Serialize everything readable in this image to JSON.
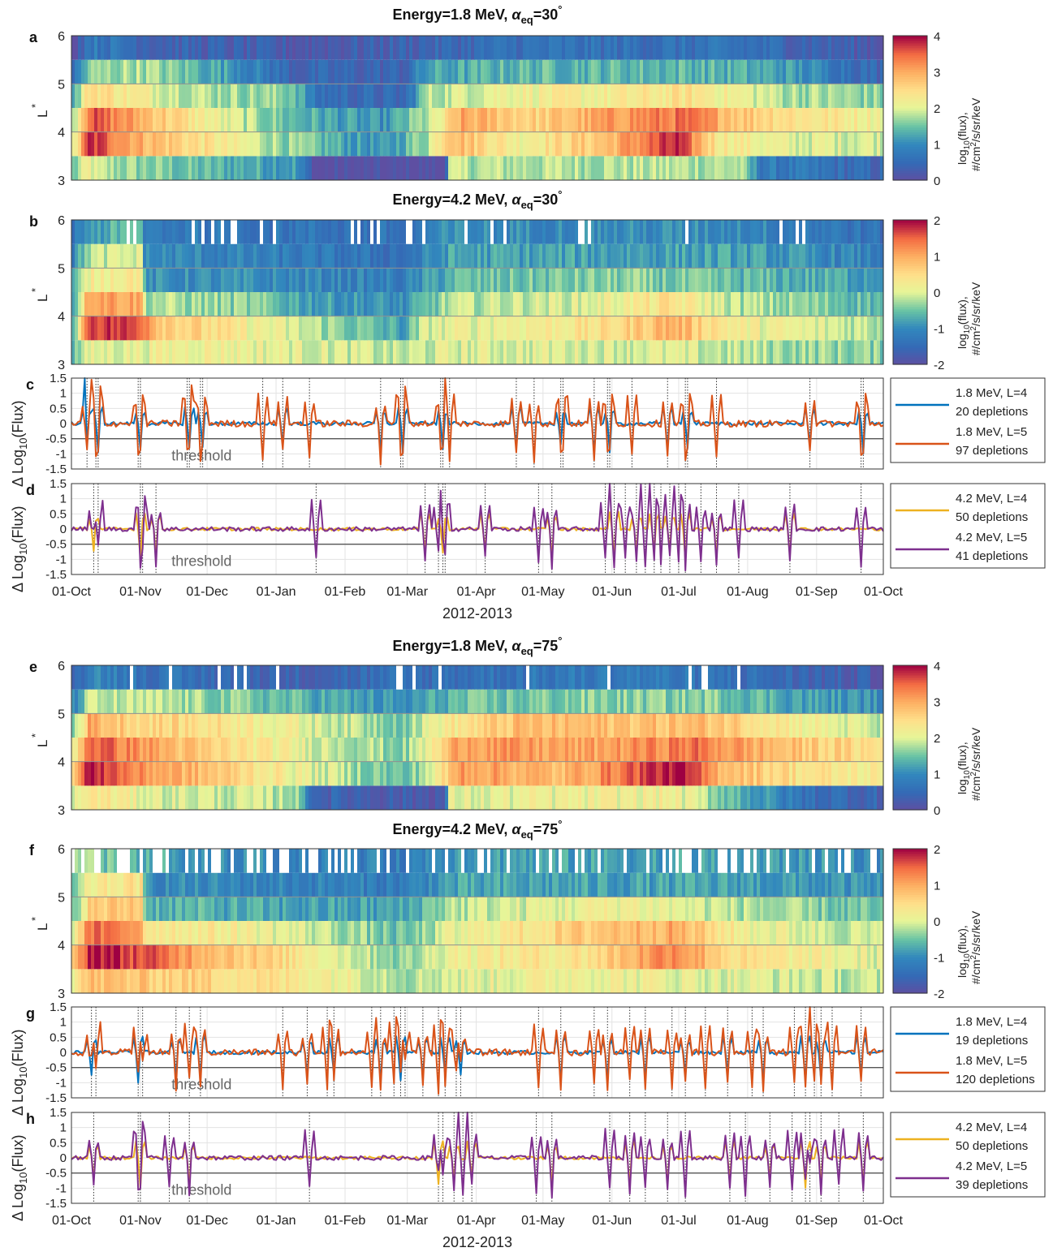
{
  "figure": {
    "xlabel": "2012-2013",
    "month_ticks": [
      "01-Oct",
      "01-Nov",
      "01-Dec",
      "01-Jan",
      "01-Feb",
      "01-Mar",
      "01-Apr",
      "01-May",
      "01-Jun",
      "01-Jul",
      "01-Aug",
      "01-Sep",
      "01-Oct"
    ],
    "month_day_offsets": [
      0,
      31,
      61,
      92,
      123,
      151,
      182,
      212,
      243,
      273,
      304,
      335,
      365
    ],
    "heatmap_yticks": [
      "3",
      "4",
      "5",
      "6"
    ],
    "heatmap_ylabel": "L",
    "heatmap_ylabel_sup": "*",
    "line_ylabel": "Δ Log10(Flux)",
    "line_yticks": [
      "1.5",
      "1",
      "0.5",
      "0",
      "-0.5",
      "-1",
      "-1.5"
    ],
    "threshold_label": "threshold",
    "threshold_value": -0.5,
    "colorbar_label": "log10(flux), #/cm2/s/sr/keV"
  },
  "chart_data": [
    {
      "panel": "a",
      "type": "heatmap",
      "title": "Energy=1.8 MeV, αeq=30°",
      "title_parts": {
        "pre": "Energy=1.8 MeV, ",
        "sym": "α",
        "sub": "eq",
        "post": "=30",
        "deg": "°"
      },
      "ylim": [
        3,
        6
      ],
      "clim": [
        0,
        4
      ],
      "colorbar_ticks": [
        "0",
        "1",
        "2",
        "3",
        "4"
      ],
      "x_range_days": [
        0,
        365
      ],
      "L_bins": [
        3.25,
        3.75,
        4.25,
        4.75,
        5.25,
        5.75
      ]
    },
    {
      "panel": "b",
      "type": "heatmap",
      "title": "Energy=4.2 MeV, αeq=30°",
      "title_parts": {
        "pre": "Energy=4.2 MeV, ",
        "sym": "α",
        "sub": "eq",
        "post": "=30",
        "deg": "°"
      },
      "ylim": [
        3,
        6
      ],
      "clim": [
        -2,
        2
      ],
      "colorbar_ticks": [
        "-2",
        "-1",
        "0",
        "1",
        "2"
      ],
      "x_range_days": [
        0,
        365
      ],
      "L_bins": [
        3.25,
        3.75,
        4.25,
        4.75,
        5.25,
        5.75
      ]
    },
    {
      "panel": "c",
      "type": "line",
      "ylim": [
        -1.5,
        1.5
      ],
      "threshold": -0.5,
      "series": [
        {
          "name": "1.8 MeV, L=4",
          "count_label": "20 depletions",
          "color": "#0072BD"
        },
        {
          "name": "1.8 MeV, L=5",
          "count_label": "97 depletions",
          "color": "#D95319"
        }
      ]
    },
    {
      "panel": "d",
      "type": "line",
      "ylim": [
        -1.5,
        1.5
      ],
      "threshold": -0.5,
      "series": [
        {
          "name": "4.2 MeV, L=4",
          "count_label": "50 depletions",
          "color": "#EDB120"
        },
        {
          "name": "4.2 MeV, L=5",
          "count_label": "41 depletions",
          "color": "#7E2F8E"
        }
      ]
    },
    {
      "panel": "e",
      "type": "heatmap",
      "title": "Energy=1.8 MeV, αeq=75°",
      "title_parts": {
        "pre": "Energy=1.8 MeV, ",
        "sym": "α",
        "sub": "eq",
        "post": "=75",
        "deg": "°"
      },
      "ylim": [
        3,
        6
      ],
      "clim": [
        0,
        4
      ],
      "colorbar_ticks": [
        "0",
        "1",
        "2",
        "3",
        "4"
      ],
      "x_range_days": [
        0,
        365
      ],
      "L_bins": [
        3.25,
        3.75,
        4.25,
        4.75,
        5.25,
        5.75
      ]
    },
    {
      "panel": "f",
      "type": "heatmap",
      "title": "Energy=4.2 MeV, αeq=75°",
      "title_parts": {
        "pre": "Energy=4.2 MeV, ",
        "sym": "α",
        "sub": "eq",
        "post": "=75",
        "deg": "°"
      },
      "ylim": [
        3,
        6
      ],
      "clim": [
        -2,
        2
      ],
      "colorbar_ticks": [
        "-2",
        "-1",
        "0",
        "1",
        "2"
      ],
      "x_range_days": [
        0,
        365
      ],
      "L_bins": [
        3.25,
        3.75,
        4.25,
        4.75,
        5.25,
        5.75
      ]
    },
    {
      "panel": "g",
      "type": "line",
      "ylim": [
        -1.5,
        1.5
      ],
      "threshold": -0.5,
      "series": [
        {
          "name": "1.8 MeV, L=4",
          "count_label": "19 depletions",
          "color": "#0072BD"
        },
        {
          "name": "1.8 MeV, L=5",
          "count_label": "120 depletions",
          "color": "#D95319"
        }
      ]
    },
    {
      "panel": "h",
      "type": "line",
      "ylim": [
        -1.5,
        1.5
      ],
      "threshold": -0.5,
      "series": [
        {
          "name": "4.2 MeV, L=4",
          "count_label": "50 depletions",
          "color": "#EDB120"
        },
        {
          "name": "4.2 MeV, L=5",
          "count_label": "39 depletions",
          "color": "#7E2F8E"
        }
      ]
    }
  ]
}
